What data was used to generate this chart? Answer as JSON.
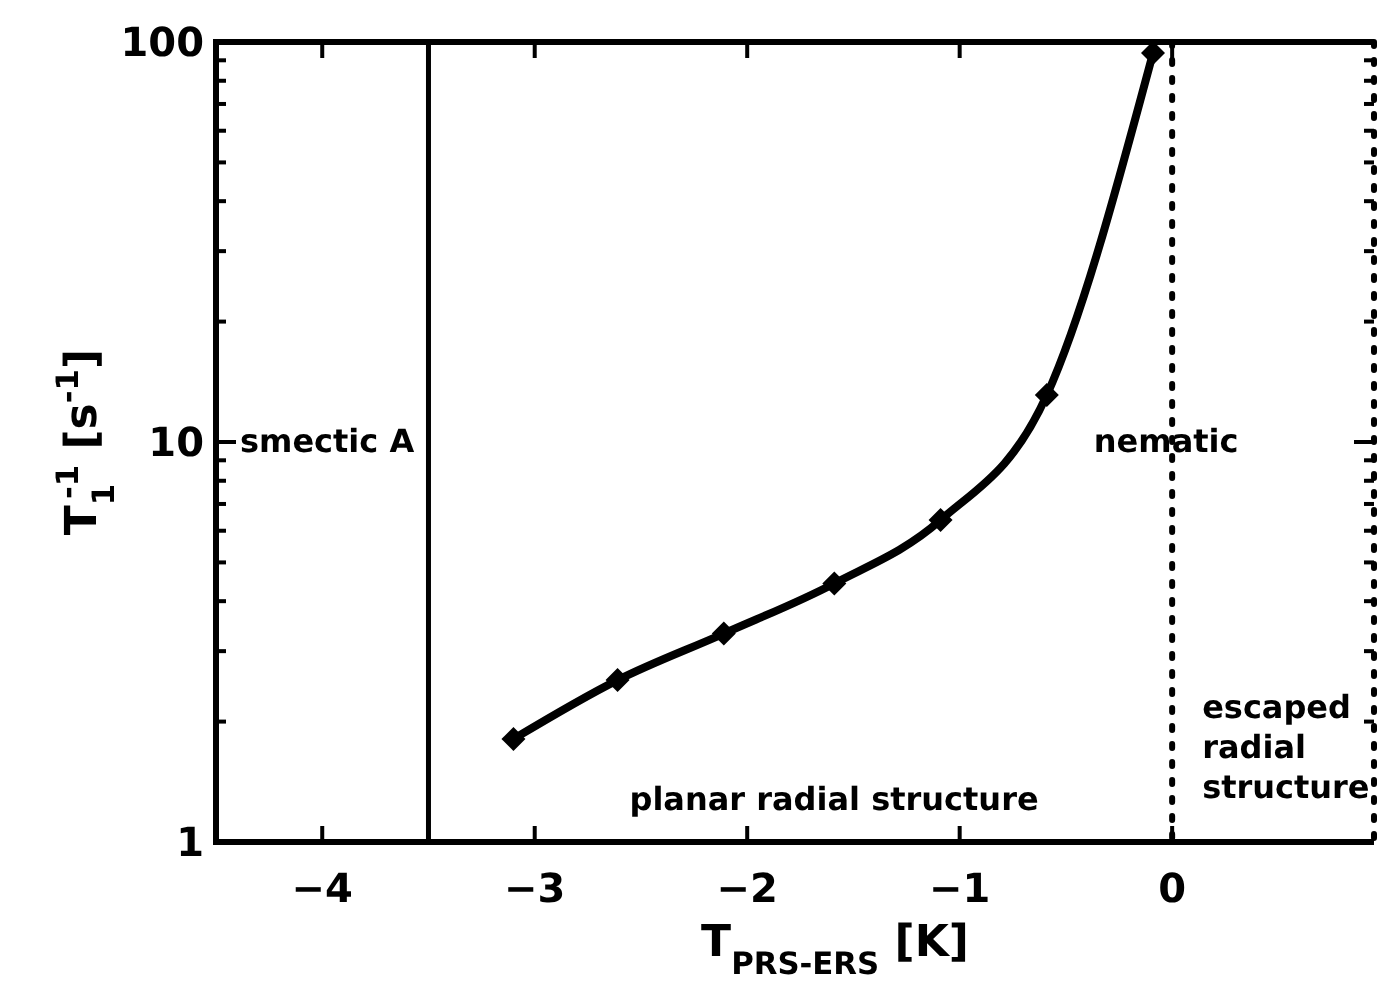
{
  "chart_data": {
    "type": "line",
    "xlabel": "T$_{PRS-ERS}$ [K]",
    "ylabel": "T$_{1}$$^{-1}$ [s$^{-1}$]",
    "x": [
      -3.1,
      -2.61,
      -2.11,
      -1.59,
      -1.09,
      -0.59,
      -0.09
    ],
    "series": [
      {
        "color": "#000000",
        "values": [
          1.81,
          2.54,
          3.32,
          4.43,
          6.38,
          13.1,
          93.8
        ]
      }
    ],
    "xlim": [
      -4.5,
      0.95
    ],
    "xticks": [
      -4,
      -3,
      -2,
      -1,
      0
    ],
    "ylim": [
      1,
      100
    ],
    "yticks": [
      1,
      {
        "value": 2,
        "label": null
      },
      {
        "value": 3,
        "label": null
      },
      {
        "value": 4,
        "label": null
      },
      {
        "value": 5,
        "label": null
      },
      {
        "value": 6,
        "label": null
      },
      {
        "value": 7,
        "label": null
      },
      {
        "value": 8,
        "label": null
      },
      {
        "value": 9,
        "label": null
      },
      10,
      {
        "value": 20,
        "label": null
      },
      {
        "value": 30,
        "label": null
      },
      {
        "value": 40,
        "label": null
      },
      {
        "value": 50,
        "label": null
      },
      {
        "value": 60,
        "label": null
      },
      {
        "value": 70,
        "label": null
      },
      {
        "value": 80,
        "label": null
      },
      {
        "value": 90,
        "label": null
      },
      100
    ],
    "log": true,
    "marker": "diamond",
    "line_style": "solid",
    "grid": false,
    "ref_lines": [
      {
        "axis": "x",
        "value": -3.5,
        "line_style": "solid"
      },
      {
        "axis": "x",
        "value": 0,
        "line_style": "dotted"
      }
    ],
    "annotations": [
      "smectic A",
      "nematic",
      "planar radial structure",
      "escaped radial structure"
    ]
  }
}
